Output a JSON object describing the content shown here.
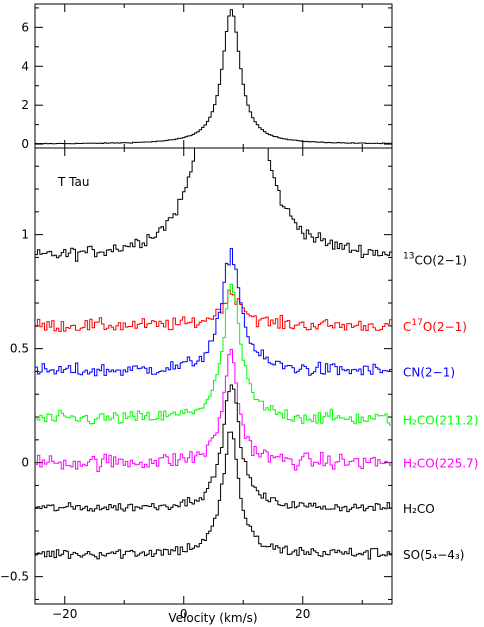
{
  "chart_data": [
    {
      "type": "line",
      "panel": "top",
      "ylim": [
        -0.2,
        7.2
      ],
      "xlim": [
        -25,
        35
      ],
      "ytick_labels": [
        "0",
        "2",
        "4",
        "6"
      ],
      "yticks": [
        0,
        2,
        4,
        6
      ],
      "peak": {
        "x": 8.0,
        "y": 6.9
      },
      "baseline": 0.0,
      "width": 1.8,
      "color": "#000000"
    },
    {
      "type": "line",
      "panel": "bottom",
      "annotation": "T Tau",
      "xlabel": "Velocity (km/s)",
      "xlim": [
        -25,
        35
      ],
      "ylim": [
        -0.62,
        1.38
      ],
      "xticks": [
        -20,
        0,
        20
      ],
      "xtick_labels": [
        "−20",
        "0",
        "20"
      ],
      "yticks": [
        -0.5,
        0,
        0.5,
        1
      ],
      "ytick_labels": [
        "−0.5",
        "0",
        "0.5",
        "1"
      ],
      "series": [
        {
          "name": "13CO(2-1)",
          "label_main": "CO(2−1)",
          "label_sup": "13",
          "label_pre": "",
          "color": "#000000",
          "baseline": 0.89,
          "peak_x": 8.0,
          "peak": 6.0,
          "width": 1.8,
          "noise": 0.028
        },
        {
          "name": "C17O(2-1)",
          "label_pre": "C",
          "label_sup": "17",
          "label_main": "O(2−1)",
          "color": "#ff0000",
          "baseline": 0.6,
          "peak_x": 8.2,
          "peak": 0.14,
          "width": 2.2,
          "noise": 0.028
        },
        {
          "name": "CN(2-1)",
          "label_pre": "",
          "label_sup": "",
          "label_main": "CN(2−1)",
          "color": "#0000ff",
          "baseline": 0.4,
          "peak_x": 8.0,
          "peak": 0.52,
          "width": 1.9,
          "noise": 0.03
        },
        {
          "name": "H2CO(211.2)",
          "label_pre": "",
          "label_sup": "",
          "label_main": "H₂CO(211.2)",
          "color": "#00ff00",
          "baseline": 0.19,
          "peak_x": 8.1,
          "peak": 0.59,
          "width": 1.7,
          "noise": 0.03
        },
        {
          "name": "H2CO(225.7)",
          "label_pre": "",
          "label_sup": "",
          "label_main": "H₂CO(225.7)",
          "color": "#ff00ff",
          "baseline": 0.0,
          "peak_x": 7.9,
          "peak": 0.48,
          "width": 1.5,
          "noise": 0.035
        },
        {
          "name": "H2CO",
          "label_pre": "",
          "label_sup": "",
          "label_main": "H₂CO",
          "color": "#000000",
          "baseline": -0.2,
          "peak_x": 8.0,
          "peak": 0.55,
          "width": 1.7,
          "noise": 0.02
        },
        {
          "name": "SO(54-43)",
          "label_pre": "",
          "label_sup": "",
          "label_main": "SO(5₄−4₃)",
          "color": "#000000",
          "baseline": -0.4,
          "peak_x": 7.9,
          "peak": 0.54,
          "width": 1.6,
          "noise": 0.025
        }
      ]
    }
  ]
}
